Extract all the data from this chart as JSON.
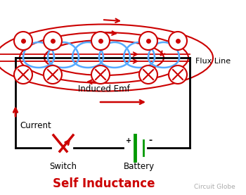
{
  "title": "Self Inductance",
  "subtitle": "Circuit Globe",
  "flux_line_label": "Flux Line",
  "induced_emf_label": "Induced Emf",
  "current_label": "Current",
  "switch_label": "Switch",
  "battery_label": "Battery",
  "bg_color": "#ffffff",
  "coil_color": "#55aaff",
  "flux_color": "#cc0000",
  "wire_color": "#000000",
  "battery_color": "#009900",
  "title_color": "#cc0000",
  "subtitle_color": "#aaaaaa",
  "figsize": [
    3.5,
    2.77
  ],
  "dpi": 100
}
